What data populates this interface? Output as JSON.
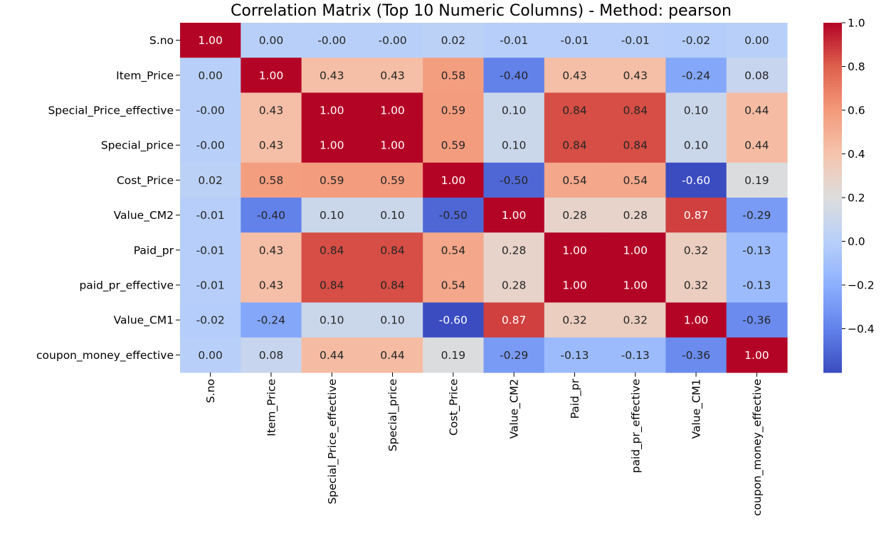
{
  "chart_data": {
    "type": "heatmap",
    "title": "Correlation Matrix (Top 10 Numeric Columns) - Method: pearson",
    "xlabel": "",
    "ylabel": "",
    "columns": [
      "S.no",
      "Item_Price",
      "Special_Price_effective",
      "Special_price",
      "Cost_Price",
      "Value_CM2",
      "Paid_pr",
      "paid_pr_effective",
      "Value_CM1",
      "coupon_money_effective"
    ],
    "rows": [
      "S.no",
      "Item_Price",
      "Special_Price_effective",
      "Special_price",
      "Cost_Price",
      "Value_CM2",
      "Paid_pr",
      "paid_pr_effective",
      "Value_CM1",
      "coupon_money_effective"
    ],
    "values": [
      [
        1.0,
        0.0,
        -0.0,
        -0.0,
        0.02,
        -0.01,
        -0.01,
        -0.01,
        -0.02,
        0.0
      ],
      [
        0.0,
        1.0,
        0.43,
        0.43,
        0.58,
        -0.4,
        0.43,
        0.43,
        -0.24,
        0.08
      ],
      [
        -0.0,
        0.43,
        1.0,
        1.0,
        0.59,
        0.1,
        0.84,
        0.84,
        0.1,
        0.44
      ],
      [
        -0.0,
        0.43,
        1.0,
        1.0,
        0.59,
        0.1,
        0.84,
        0.84,
        0.1,
        0.44
      ],
      [
        0.02,
        0.58,
        0.59,
        0.59,
        1.0,
        -0.5,
        0.54,
        0.54,
        -0.6,
        0.19
      ],
      [
        -0.01,
        -0.4,
        0.1,
        0.1,
        -0.5,
        1.0,
        0.28,
        0.28,
        0.87,
        -0.29
      ],
      [
        -0.01,
        0.43,
        0.84,
        0.84,
        0.54,
        0.28,
        1.0,
        1.0,
        0.32,
        -0.13
      ],
      [
        -0.01,
        0.43,
        0.84,
        0.84,
        0.54,
        0.28,
        1.0,
        1.0,
        0.32,
        -0.13
      ],
      [
        -0.02,
        -0.24,
        0.1,
        0.1,
        -0.6,
        0.87,
        0.32,
        0.32,
        1.0,
        -0.36
      ],
      [
        0.0,
        0.08,
        0.44,
        0.44,
        0.19,
        -0.29,
        -0.13,
        -0.13,
        -0.36,
        1.0
      ]
    ],
    "cell_labels": [
      [
        "1.00",
        "0.00",
        "-0.00",
        "-0.00",
        "0.02",
        "-0.01",
        "-0.01",
        "-0.01",
        "-0.02",
        "0.00"
      ],
      [
        "0.00",
        "1.00",
        "0.43",
        "0.43",
        "0.58",
        "-0.40",
        "0.43",
        "0.43",
        "-0.24",
        "0.08"
      ],
      [
        "-0.00",
        "0.43",
        "1.00",
        "1.00",
        "0.59",
        "0.10",
        "0.84",
        "0.84",
        "0.10",
        "0.44"
      ],
      [
        "-0.00",
        "0.43",
        "1.00",
        "1.00",
        "0.59",
        "0.10",
        "0.84",
        "0.84",
        "0.10",
        "0.44"
      ],
      [
        "0.02",
        "0.58",
        "0.59",
        "0.59",
        "1.00",
        "-0.50",
        "0.54",
        "0.54",
        "-0.60",
        "0.19"
      ],
      [
        "-0.01",
        "-0.40",
        "0.10",
        "0.10",
        "-0.50",
        "1.00",
        "0.28",
        "0.28",
        "0.87",
        "-0.29"
      ],
      [
        "-0.01",
        "0.43",
        "0.84",
        "0.84",
        "0.54",
        "0.28",
        "1.00",
        "1.00",
        "0.32",
        "-0.13"
      ],
      [
        "-0.01",
        "0.43",
        "0.84",
        "0.84",
        "0.54",
        "0.28",
        "1.00",
        "1.00",
        "0.32",
        "-0.13"
      ],
      [
        "-0.02",
        "-0.24",
        "0.10",
        "0.10",
        "-0.60",
        "0.87",
        "0.32",
        "0.32",
        "1.00",
        "-0.36"
      ],
      [
        "0.00",
        "0.08",
        "0.44",
        "0.44",
        "0.19",
        "-0.29",
        "-0.13",
        "-0.13",
        "-0.36",
        "1.00"
      ]
    ],
    "colormap": "coolwarm",
    "color_range": [
      -0.6,
      1.0
    ],
    "colorbar": {
      "ticks": [
        1.0,
        0.8,
        0.6,
        0.4,
        0.2,
        0.0,
        -0.2,
        -0.4
      ],
      "tick_labels": [
        "1.0",
        "0.8",
        "0.6",
        "0.4",
        "0.2",
        "0.0",
        "−0.2",
        "−0.4"
      ],
      "placement": "right"
    },
    "grid": false
  }
}
